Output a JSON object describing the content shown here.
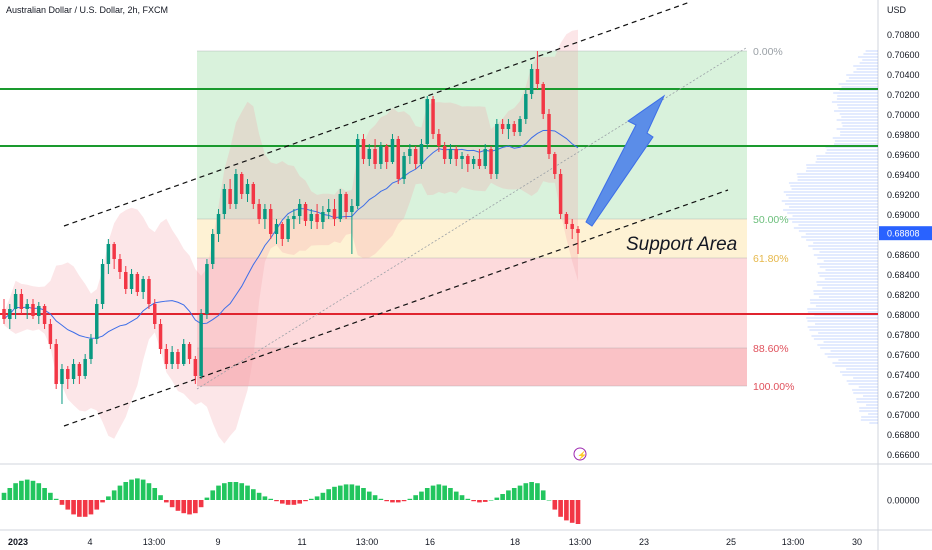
{
  "header": {
    "symbol_title": "Australian Dollar / U.S. Dollar, 2h, FXCM",
    "currency": "USD"
  },
  "colors": {
    "up": "#089981",
    "down": "#f23645",
    "hline_green": "#1a9a2e",
    "hline_red": "#e0242f",
    "ma": "#3d6ee8",
    "arrow": "#5b8de8",
    "price_tag": "#2962ff"
  },
  "chart_data": [
    {
      "type": "candlestick",
      "title": "Australian Dollar / U.S. Dollar, 2h, FXCM",
      "y_axis": {
        "label": "USD",
        "ticks": [
          0.708,
          0.706,
          0.704,
          0.702,
          0.7,
          0.698,
          0.696,
          0.694,
          0.692,
          0.69,
          0.688,
          0.686,
          0.684,
          0.682,
          0.68,
          0.678,
          0.676,
          0.674,
          0.672,
          0.67,
          0.668,
          0.666
        ],
        "tick_labels": [
          "0.70800",
          "0.70600",
          "0.70400",
          "0.70200",
          "0.70000",
          "0.69800",
          "0.69600",
          "0.69400",
          "0.69200",
          "0.69000",
          "0.68800",
          "0.68600",
          "0.68400",
          "0.68200",
          "0.68000",
          "0.67800",
          "0.67600",
          "0.67400",
          "0.67200",
          "0.67000",
          "0.66800",
          "0.66600"
        ],
        "range": [
          0.6652,
          0.71
        ]
      },
      "x_axis": {
        "tick_labels": [
          "2023",
          "4",
          "13:00",
          "9",
          "11",
          "13:00",
          "16",
          "18",
          "13:00",
          "23",
          "25",
          "13:00",
          "30"
        ]
      },
      "current_price": {
        "value": 0.68808,
        "label": "0.68808"
      },
      "horizontal_lines": [
        {
          "price": 0.7025,
          "color": "green"
        },
        {
          "price": 0.6968,
          "color": "green"
        },
        {
          "price": 0.68,
          "color": "red"
        }
      ],
      "fibonacci": {
        "high": 0.7063,
        "low": 0.6728,
        "levels": [
          {
            "ratio": 0,
            "label": "0.00%",
            "price": 0.7063
          },
          {
            "ratio": 0.5,
            "label": "50.00%",
            "price": 0.6895
          },
          {
            "ratio": 0.618,
            "label": "61.80%",
            "price": 0.6856
          },
          {
            "ratio": 0.886,
            "label": "88.60%",
            "price": 0.6766
          },
          {
            "ratio": 1,
            "label": "100.00%",
            "price": 0.6728
          }
        ]
      },
      "annotation": "Support Area",
      "candles_ohlc": [
        [
          0.6805,
          0.6815,
          0.679,
          0.6795
        ],
        [
          0.6795,
          0.681,
          0.6785,
          0.6805
        ],
        [
          0.6805,
          0.6825,
          0.6795,
          0.682
        ],
        [
          0.682,
          0.6825,
          0.68,
          0.6805
        ],
        [
          0.6805,
          0.6815,
          0.6795,
          0.681
        ],
        [
          0.681,
          0.6815,
          0.6795,
          0.6798
        ],
        [
          0.6798,
          0.6812,
          0.679,
          0.6808
        ],
        [
          0.6808,
          0.681,
          0.6785,
          0.679
        ],
        [
          0.679,
          0.6795,
          0.6765,
          0.677
        ],
        [
          0.677,
          0.6775,
          0.6725,
          0.673
        ],
        [
          0.673,
          0.675,
          0.671,
          0.6745
        ],
        [
          0.6745,
          0.6748,
          0.6725,
          0.6735
        ],
        [
          0.6735,
          0.6755,
          0.673,
          0.675
        ],
        [
          0.675,
          0.6752,
          0.673,
          0.6738
        ],
        [
          0.6738,
          0.676,
          0.6735,
          0.6755
        ],
        [
          0.6755,
          0.678,
          0.675,
          0.6775
        ],
        [
          0.6775,
          0.6815,
          0.677,
          0.681
        ],
        [
          0.681,
          0.6855,
          0.6805,
          0.685
        ],
        [
          0.685,
          0.6875,
          0.684,
          0.687
        ],
        [
          0.687,
          0.6872,
          0.6845,
          0.6855
        ],
        [
          0.6855,
          0.686,
          0.6835,
          0.6842
        ],
        [
          0.6842,
          0.6848,
          0.682,
          0.6825
        ],
        [
          0.6825,
          0.6845,
          0.682,
          0.684
        ],
        [
          0.684,
          0.6842,
          0.6818,
          0.6822
        ],
        [
          0.6822,
          0.6838,
          0.6815,
          0.6835
        ],
        [
          0.6835,
          0.6838,
          0.6805,
          0.681
        ],
        [
          0.681,
          0.6815,
          0.6785,
          0.679
        ],
        [
          0.679,
          0.6795,
          0.676,
          0.6765
        ],
        [
          0.6765,
          0.677,
          0.6745,
          0.675
        ],
        [
          0.675,
          0.6768,
          0.6745,
          0.6762
        ],
        [
          0.6762,
          0.6765,
          0.6745,
          0.675
        ],
        [
          0.675,
          0.6775,
          0.6748,
          0.677
        ],
        [
          0.677,
          0.6772,
          0.675,
          0.6755
        ],
        [
          0.6755,
          0.6758,
          0.673,
          0.6738
        ],
        [
          0.6738,
          0.6805,
          0.6735,
          0.68
        ],
        [
          0.68,
          0.6855,
          0.6795,
          0.685
        ],
        [
          0.685,
          0.6885,
          0.6845,
          0.688
        ],
        [
          0.688,
          0.6905,
          0.6872,
          0.69
        ],
        [
          0.69,
          0.693,
          0.6895,
          0.6925
        ],
        [
          0.6925,
          0.6935,
          0.6905,
          0.691
        ],
        [
          0.691,
          0.6945,
          0.6905,
          0.694
        ],
        [
          0.694,
          0.6942,
          0.6915,
          0.692
        ],
        [
          0.692,
          0.6935,
          0.6912,
          0.693
        ],
        [
          0.693,
          0.6932,
          0.6905,
          0.691
        ],
        [
          0.691,
          0.6915,
          0.689,
          0.6895
        ],
        [
          0.6895,
          0.691,
          0.6885,
          0.6905
        ],
        [
          0.6905,
          0.691,
          0.6875,
          0.688
        ],
        [
          0.688,
          0.6895,
          0.687,
          0.689
        ],
        [
          0.689,
          0.6892,
          0.6868,
          0.6875
        ],
        [
          0.6875,
          0.6898,
          0.6872,
          0.6895
        ],
        [
          0.6895,
          0.6905,
          0.6885,
          0.6898
        ],
        [
          0.6898,
          0.6915,
          0.689,
          0.691
        ],
        [
          0.691,
          0.6912,
          0.6888,
          0.6893
        ],
        [
          0.6893,
          0.6905,
          0.6885,
          0.69
        ],
        [
          0.69,
          0.691,
          0.6885,
          0.6892
        ],
        [
          0.6892,
          0.6908,
          0.6885,
          0.6902
        ],
        [
          0.6902,
          0.6915,
          0.6895,
          0.6905
        ],
        [
          0.6905,
          0.6915,
          0.6888,
          0.6895
        ],
        [
          0.6895,
          0.6925,
          0.6892,
          0.692
        ],
        [
          0.692,
          0.6922,
          0.6895,
          0.6902
        ],
        [
          0.6902,
          0.6915,
          0.686,
          0.6908
        ],
        [
          0.6908,
          0.698,
          0.6905,
          0.6975
        ],
        [
          0.6975,
          0.698,
          0.695,
          0.6955
        ],
        [
          0.6955,
          0.697,
          0.6948,
          0.6965
        ],
        [
          0.6965,
          0.6975,
          0.6945,
          0.695
        ],
        [
          0.695,
          0.6972,
          0.6945,
          0.6968
        ],
        [
          0.6968,
          0.697,
          0.6945,
          0.6952
        ],
        [
          0.6952,
          0.698,
          0.695,
          0.6975
        ],
        [
          0.6975,
          0.6978,
          0.693,
          0.6935
        ],
        [
          0.6935,
          0.6962,
          0.693,
          0.6958
        ],
        [
          0.6958,
          0.697,
          0.695,
          0.6965
        ],
        [
          0.6965,
          0.6968,
          0.6945,
          0.695
        ],
        [
          0.695,
          0.6975,
          0.6945,
          0.697
        ],
        [
          0.697,
          0.7018,
          0.6965,
          0.7015
        ],
        [
          0.7015,
          0.7018,
          0.6975,
          0.698
        ],
        [
          0.698,
          0.6985,
          0.6962,
          0.6968
        ],
        [
          0.6968,
          0.6972,
          0.695,
          0.6955
        ],
        [
          0.6955,
          0.697,
          0.695,
          0.6965
        ],
        [
          0.6965,
          0.6968,
          0.6948,
          0.6955
        ],
        [
          0.6955,
          0.6962,
          0.6945,
          0.6958
        ],
        [
          0.6958,
          0.696,
          0.6942,
          0.695
        ],
        [
          0.695,
          0.6958,
          0.6945,
          0.6955
        ],
        [
          0.6955,
          0.6965,
          0.6945,
          0.6948
        ],
        [
          0.6948,
          0.697,
          0.6945,
          0.6965
        ],
        [
          0.6965,
          0.6968,
          0.6935,
          0.694
        ],
        [
          0.694,
          0.6995,
          0.6935,
          0.699
        ],
        [
          0.699,
          0.6995,
          0.698,
          0.6985
        ],
        [
          0.6985,
          0.6995,
          0.6975,
          0.699
        ],
        [
          0.699,
          0.6993,
          0.6978,
          0.6982
        ],
        [
          0.6982,
          0.6998,
          0.6978,
          0.6995
        ],
        [
          0.6995,
          0.7025,
          0.699,
          0.702
        ],
        [
          0.702,
          0.705,
          0.7015,
          0.7045
        ],
        [
          0.7045,
          0.7063,
          0.7025,
          0.703
        ],
        [
          0.703,
          0.7032,
          0.6995,
          0.7
        ],
        [
          0.7,
          0.7005,
          0.6955,
          0.696
        ],
        [
          0.696,
          0.6962,
          0.6935,
          0.694
        ],
        [
          0.694,
          0.6945,
          0.6895,
          0.69
        ],
        [
          0.69,
          0.6902,
          0.6885,
          0.689
        ],
        [
          0.689,
          0.6895,
          0.6875,
          0.6885
        ],
        [
          0.6885,
          0.6888,
          0.686,
          0.6881
        ]
      ],
      "oscillator_pane": {
        "tick_labels": [
          "0.00000"
        ],
        "values": [
          0.3,
          0.5,
          0.7,
          0.8,
          0.85,
          0.8,
          0.7,
          0.5,
          0.3,
          0.05,
          -0.2,
          -0.4,
          -0.6,
          -0.7,
          -0.7,
          -0.6,
          -0.4,
          -0.1,
          0.15,
          0.4,
          0.6,
          0.75,
          0.85,
          0.9,
          0.85,
          0.7,
          0.5,
          0.2,
          -0.1,
          -0.3,
          -0.45,
          -0.55,
          -0.6,
          -0.55,
          -0.3,
          0.1,
          0.4,
          0.6,
          0.7,
          0.75,
          0.75,
          0.7,
          0.6,
          0.45,
          0.3,
          0.15,
          0.05,
          -0.05,
          -0.15,
          -0.2,
          -0.2,
          -0.15,
          -0.05,
          0.05,
          0.15,
          0.3,
          0.45,
          0.55,
          0.6,
          0.65,
          0.65,
          0.6,
          0.5,
          0.35,
          0.2,
          0.05,
          -0.05,
          -0.1,
          -0.1,
          -0.05,
          0.05,
          0.2,
          0.35,
          0.5,
          0.6,
          0.65,
          0.6,
          0.5,
          0.35,
          0.2,
          0.05,
          -0.05,
          -0.1,
          -0.08,
          0.0,
          0.1,
          0.25,
          0.4,
          0.5,
          0.6,
          0.7,
          0.75,
          0.7,
          0.4,
          0.0,
          -0.4,
          -0.7,
          -0.85,
          -0.95,
          -1.0
        ]
      }
    }
  ]
}
